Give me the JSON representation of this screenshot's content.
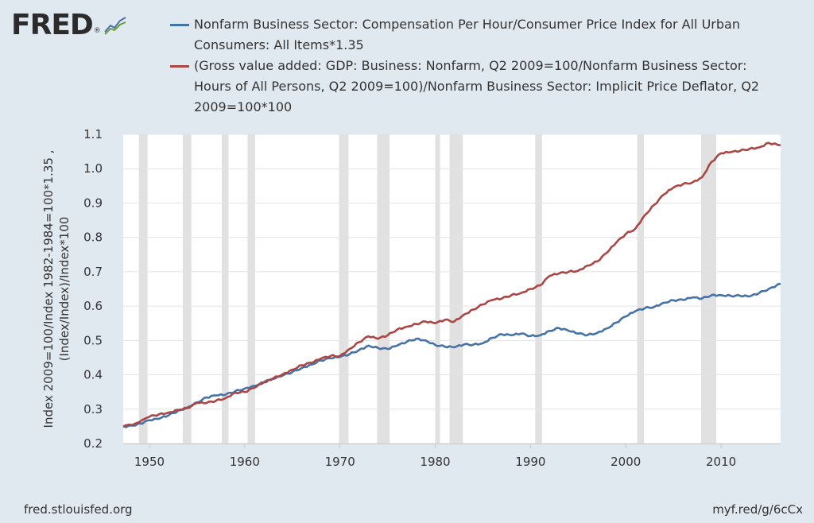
{
  "brand": {
    "logo_text": "FRED",
    "logo_mark": "®",
    "logo_icon": "chart-line-icon"
  },
  "footer": {
    "source": "fred.stlouisfed.org",
    "short_link": "myf.red/g/6cCx"
  },
  "chart_data": {
    "type": "line",
    "title": "",
    "ylabel_lines": [
      "Index 2009=100/Index 1982-1984=100*1.35 ,",
      "(Index/Index)/Index*100"
    ],
    "xlim": [
      1947.25,
      2016.25
    ],
    "ylim": [
      0.2,
      1.1
    ],
    "x_ticks": [
      1950,
      1960,
      1970,
      1980,
      1990,
      2000,
      2010
    ],
    "x_tick_labels": [
      "1950",
      "1960",
      "1970",
      "1980",
      "1990",
      "2000",
      "2010"
    ],
    "y_ticks": [
      0.2,
      0.3,
      0.4,
      0.5,
      0.6,
      0.7,
      0.8,
      0.9,
      1.0,
      1.1
    ],
    "y_tick_labels": [
      "0.2",
      "0.3",
      "0.4",
      "0.5",
      "0.6",
      "0.7",
      "0.8",
      "0.9",
      "1.0",
      "1.1"
    ],
    "grid": "horizontal",
    "legend_position": "top",
    "recessions": [
      [
        1948.9,
        1949.8
      ],
      [
        1953.5,
        1954.4
      ],
      [
        1957.6,
        1958.3
      ],
      [
        1960.3,
        1961.1
      ],
      [
        1969.9,
        1970.9
      ],
      [
        1973.9,
        1975.2
      ],
      [
        1980.0,
        1980.5
      ],
      [
        1981.5,
        1982.9
      ],
      [
        1990.5,
        1991.2
      ],
      [
        2001.2,
        2001.9
      ],
      [
        2007.9,
        2009.5
      ]
    ],
    "series": [
      {
        "name": "Nonfarm Business Sector: Compensation Per Hour/Consumer Price Index for All Urban Consumers: All Items*1.35",
        "color": "#4572a7",
        "points": [
          [
            1947.25,
            0.25
          ],
          [
            1948.5,
            0.252
          ],
          [
            1950,
            0.268
          ],
          [
            1951,
            0.272
          ],
          [
            1952,
            0.282
          ],
          [
            1953,
            0.295
          ],
          [
            1954,
            0.305
          ],
          [
            1955,
            0.32
          ],
          [
            1956,
            0.334
          ],
          [
            1957,
            0.34
          ],
          [
            1958,
            0.342
          ],
          [
            1959,
            0.352
          ],
          [
            1960,
            0.36
          ],
          [
            1961,
            0.368
          ],
          [
            1962,
            0.378
          ],
          [
            1963,
            0.388
          ],
          [
            1964,
            0.398
          ],
          [
            1965,
            0.408
          ],
          [
            1966,
            0.42
          ],
          [
            1967,
            0.43
          ],
          [
            1968,
            0.442
          ],
          [
            1969,
            0.448
          ],
          [
            1970,
            0.452
          ],
          [
            1971,
            0.46
          ],
          [
            1972,
            0.472
          ],
          [
            1973,
            0.485
          ],
          [
            1974,
            0.478
          ],
          [
            1975,
            0.475
          ],
          [
            1976,
            0.485
          ],
          [
            1977,
            0.496
          ],
          [
            1978,
            0.505
          ],
          [
            1979,
            0.5
          ],
          [
            1980,
            0.487
          ],
          [
            1981,
            0.482
          ],
          [
            1982,
            0.48
          ],
          [
            1983,
            0.488
          ],
          [
            1984,
            0.488
          ],
          [
            1985,
            0.492
          ],
          [
            1986,
            0.508
          ],
          [
            1987,
            0.518
          ],
          [
            1988,
            0.515
          ],
          [
            1989,
            0.52
          ],
          [
            1990,
            0.513
          ],
          [
            1991,
            0.515
          ],
          [
            1992,
            0.528
          ],
          [
            1993,
            0.536
          ],
          [
            1994,
            0.528
          ],
          [
            1995,
            0.52
          ],
          [
            1996,
            0.516
          ],
          [
            1997,
            0.522
          ],
          [
            1998,
            0.535
          ],
          [
            1999,
            0.552
          ],
          [
            2000,
            0.57
          ],
          [
            2001,
            0.585
          ],
          [
            2002,
            0.594
          ],
          [
            2003,
            0.598
          ],
          [
            2004,
            0.61
          ],
          [
            2005,
            0.617
          ],
          [
            2006,
            0.618
          ],
          [
            2007,
            0.625
          ],
          [
            2008,
            0.622
          ],
          [
            2009,
            0.632
          ],
          [
            2010,
            0.632
          ],
          [
            2011,
            0.63
          ],
          [
            2012,
            0.63
          ],
          [
            2013,
            0.628
          ],
          [
            2014,
            0.638
          ],
          [
            2015,
            0.65
          ],
          [
            2016.25,
            0.665
          ]
        ]
      },
      {
        "name": "(Gross value added: GDP: Business: Nonfarm, Q2 2009=100/Nonfarm Business Sector: Hours of All Persons, Q2 2009=100)/Nonfarm Business Sector: Implicit Price Deflator, Q2 2009=100*100",
        "color": "#aa4643",
        "points": [
          [
            1947.25,
            0.25
          ],
          [
            1948.5,
            0.258
          ],
          [
            1950,
            0.278
          ],
          [
            1951,
            0.285
          ],
          [
            1952,
            0.29
          ],
          [
            1953,
            0.298
          ],
          [
            1954,
            0.303
          ],
          [
            1955,
            0.318
          ],
          [
            1956,
            0.318
          ],
          [
            1957,
            0.325
          ],
          [
            1958,
            0.332
          ],
          [
            1959,
            0.348
          ],
          [
            1960,
            0.35
          ],
          [
            1961,
            0.362
          ],
          [
            1962,
            0.378
          ],
          [
            1963,
            0.39
          ],
          [
            1964,
            0.402
          ],
          [
            1965,
            0.415
          ],
          [
            1966,
            0.428
          ],
          [
            1967,
            0.435
          ],
          [
            1968,
            0.447
          ],
          [
            1969,
            0.455
          ],
          [
            1970,
            0.455
          ],
          [
            1971,
            0.475
          ],
          [
            1972,
            0.495
          ],
          [
            1973,
            0.512
          ],
          [
            1974,
            0.505
          ],
          [
            1975,
            0.515
          ],
          [
            1976,
            0.532
          ],
          [
            1977,
            0.54
          ],
          [
            1978,
            0.548
          ],
          [
            1979,
            0.555
          ],
          [
            1980,
            0.55
          ],
          [
            1981,
            0.56
          ],
          [
            1982,
            0.555
          ],
          [
            1983,
            0.575
          ],
          [
            1984,
            0.59
          ],
          [
            1985,
            0.605
          ],
          [
            1986,
            0.618
          ],
          [
            1987,
            0.622
          ],
          [
            1988,
            0.632
          ],
          [
            1989,
            0.638
          ],
          [
            1990,
            0.65
          ],
          [
            1991,
            0.66
          ],
          [
            1992,
            0.688
          ],
          [
            1993,
            0.695
          ],
          [
            1994,
            0.7
          ],
          [
            1995,
            0.703
          ],
          [
            1996,
            0.718
          ],
          [
            1997,
            0.73
          ],
          [
            1998,
            0.755
          ],
          [
            1999,
            0.785
          ],
          [
            2000,
            0.81
          ],
          [
            2001,
            0.825
          ],
          [
            2002,
            0.865
          ],
          [
            2003,
            0.895
          ],
          [
            2004,
            0.925
          ],
          [
            2005,
            0.945
          ],
          [
            2006,
            0.955
          ],
          [
            2007,
            0.96
          ],
          [
            2008,
            0.975
          ],
          [
            2009,
            1.02
          ],
          [
            2010,
            1.045
          ],
          [
            2011,
            1.048
          ],
          [
            2012,
            1.052
          ],
          [
            2013,
            1.058
          ],
          [
            2014,
            1.062
          ],
          [
            2015,
            1.075
          ],
          [
            2016.25,
            1.068
          ]
        ]
      }
    ]
  }
}
